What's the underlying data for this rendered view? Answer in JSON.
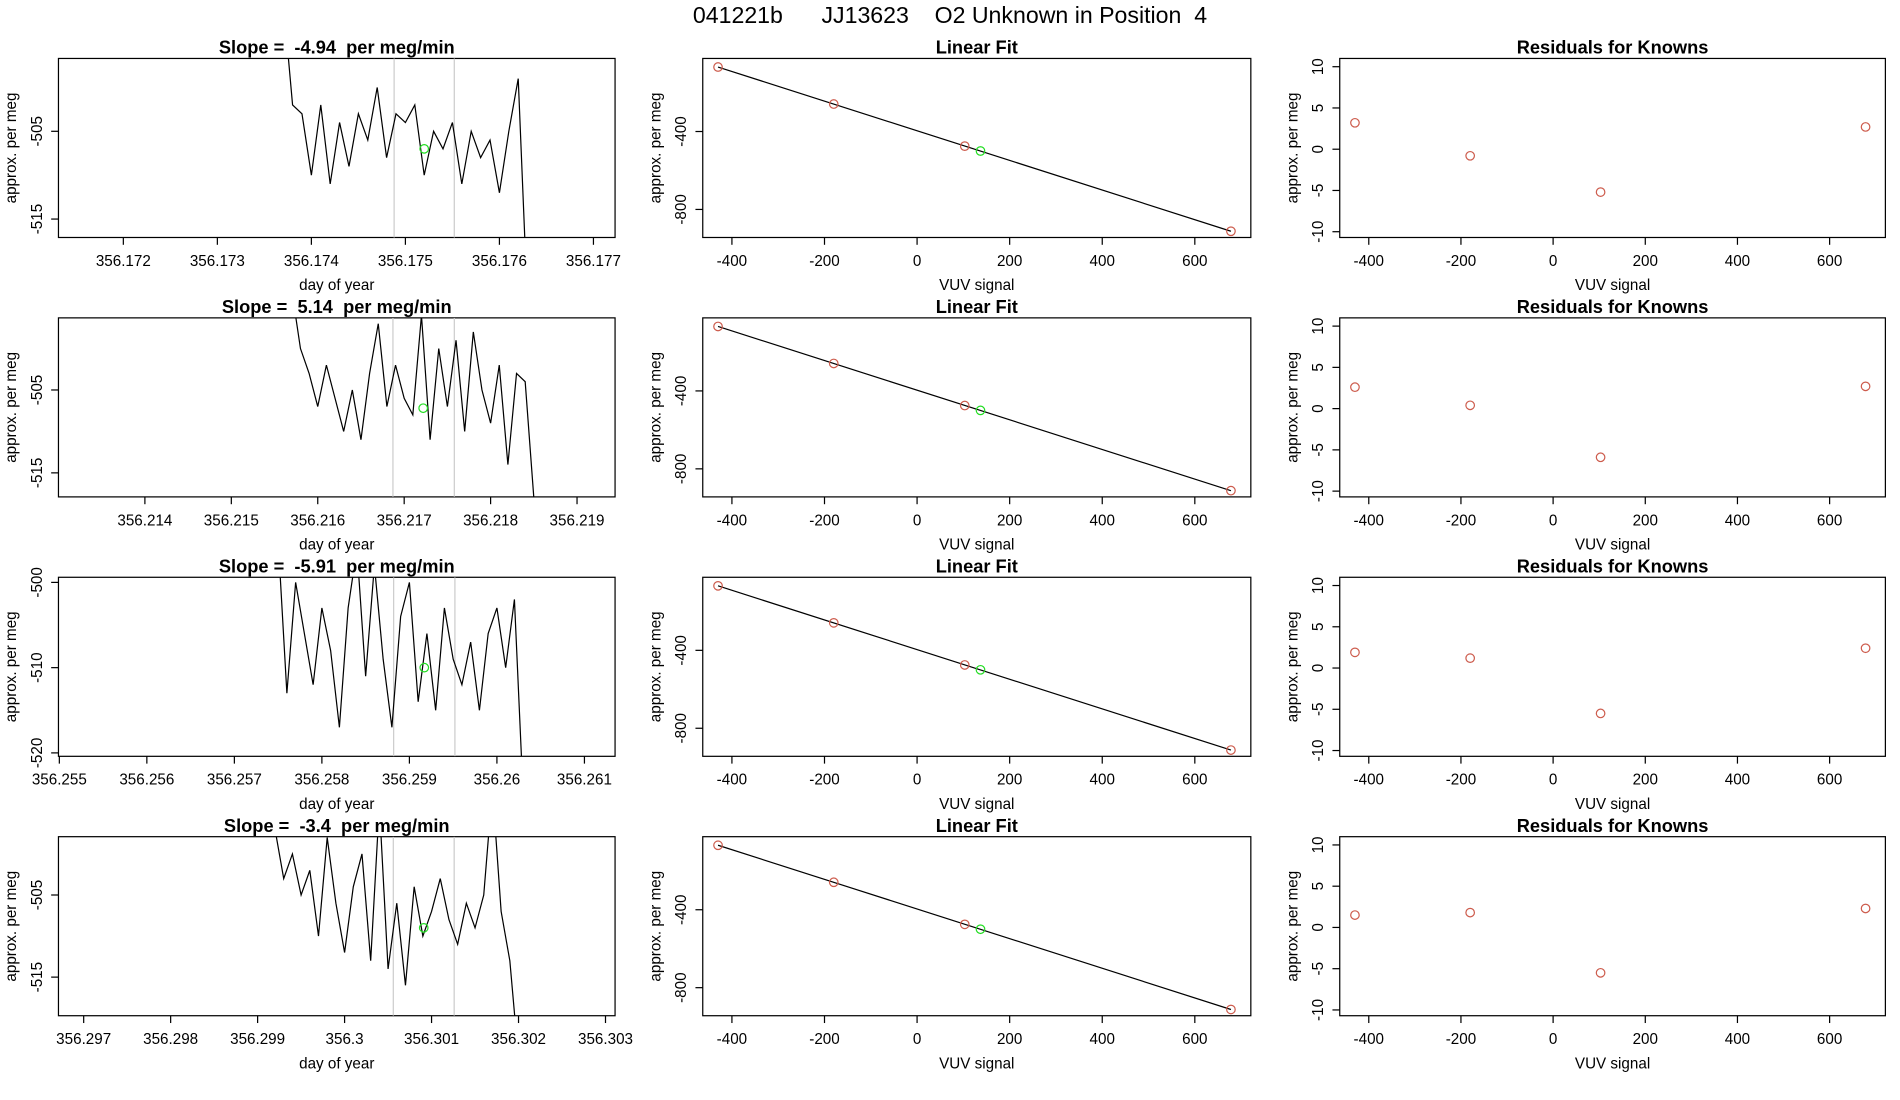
{
  "title": "041221b      JJ13623    O2 Unknown in Position  4",
  "chart_data": [
    {
      "type": "line",
      "title": "Slope =  -4.94  per meg/min",
      "xlabel": "day of year",
      "ylabel": "approx. per meg",
      "x": [
        356.1737,
        356.1738,
        356.1739,
        356.174,
        356.1741,
        356.1742,
        356.1743,
        356.1744,
        356.1745,
        356.1746,
        356.1747,
        356.1748,
        356.1749,
        356.175,
        356.1751,
        356.1752,
        356.1753,
        356.1754,
        356.1755,
        356.1756,
        356.1757,
        356.1758,
        356.1759,
        356.176,
        356.1761,
        356.1762,
        356.1763
      ],
      "values": [
        -490,
        -502,
        -503,
        -510,
        -502,
        -511,
        -504,
        -509,
        -503,
        -506,
        -500,
        -508,
        -503,
        -504,
        -502,
        -510,
        -505,
        -507,
        -504,
        -511,
        -505,
        -508,
        -506,
        -512,
        -505,
        -499,
        -525
      ],
      "color": "#000000",
      "xlim": [
        356.17131,
        356.17723
      ],
      "ylim": [
        -517.1,
        -496.7
      ],
      "xticks": [
        356.172,
        356.173,
        356.174,
        356.175,
        356.176,
        356.177
      ],
      "yticks": [
        -515,
        -505
      ],
      "vlines": [
        356.17488,
        356.17552
      ],
      "vline_color": "#cccccc",
      "highlight": {
        "x": 356.1752,
        "y": -507,
        "color": "#22dd22"
      }
    },
    {
      "type": "scatter",
      "title": "Linear Fit",
      "xlabel": "VUV signal",
      "ylabel": "approx. per meg",
      "x": [
        -430,
        -180,
        103,
        678
      ],
      "values": [
        -69,
        -259,
        -475,
        -912
      ],
      "color": "#cd5c4d",
      "fit_x": [
        -430,
        678
      ],
      "fit_y": [
        -69,
        -912
      ],
      "fit_color": "#000000",
      "highlight": {
        "x": 137,
        "y": -500,
        "color": "#22dd22"
      },
      "xlim": [
        -463,
        721
      ],
      "ylim": [
        -944,
        -25
      ],
      "xticks": [
        -400,
        -200,
        0,
        200,
        400,
        600
      ],
      "yticks": [
        -800,
        -400
      ]
    },
    {
      "type": "scatter",
      "title": "Residuals for Knowns",
      "xlabel": "VUV signal",
      "ylabel": "approx. per meg",
      "x": [
        -430,
        -180,
        103,
        678
      ],
      "values": [
        3.2,
        -0.8,
        -5.2,
        2.7
      ],
      "color": "#cd5c4d",
      "xlim": [
        -463,
        721
      ],
      "ylim": [
        -10.7,
        11
      ],
      "xticks": [
        -400,
        -200,
        0,
        200,
        400,
        600
      ],
      "yticks": [
        -10,
        -5,
        0,
        5,
        10
      ]
    },
    {
      "type": "line",
      "title": "Slope =  5.14  per meg/min",
      "xlabel": "day of year",
      "ylabel": "approx. per meg",
      "x": [
        356.2157,
        356.2158,
        356.2159,
        356.216,
        356.2161,
        356.2162,
        356.2163,
        356.2164,
        356.2165,
        356.2166,
        356.2167,
        356.2168,
        356.2169,
        356.217,
        356.2171,
        356.2172,
        356.2173,
        356.2174,
        356.2175,
        356.2176,
        356.2177,
        356.2178,
        356.2179,
        356.218,
        356.2181,
        356.2182,
        356.2183,
        356.2184,
        356.2185
      ],
      "values": [
        -493,
        -500,
        -503,
        -507,
        -502,
        -506,
        -510,
        -505,
        -511,
        -503,
        -497,
        -507,
        -502,
        -506,
        -508,
        -496,
        -511,
        -500,
        -507,
        -499,
        -510,
        -498,
        -505,
        -509,
        -502,
        -514,
        -503,
        -504,
        -518
      ],
      "color": "#000000",
      "xlim": [
        356.213,
        356.21944
      ],
      "ylim": [
        -517.9,
        -496.3
      ],
      "xticks": [
        356.214,
        356.215,
        356.216,
        356.217,
        356.218,
        356.219
      ],
      "yticks": [
        -515,
        -505
      ],
      "vlines": [
        356.21687,
        356.21758
      ],
      "vline_color": "#cccccc",
      "highlight": {
        "x": 356.21722,
        "y": -507.2,
        "color": "#22dd22"
      }
    },
    {
      "type": "scatter",
      "title": "Linear Fit",
      "xlabel": "VUV signal",
      "ylabel": "approx. per meg",
      "x": [
        -430,
        -180,
        103,
        678
      ],
      "values": [
        -69,
        -259,
        -475,
        -912
      ],
      "color": "#cd5c4d",
      "fit_x": [
        -430,
        678
      ],
      "fit_y": [
        -69,
        -912
      ],
      "fit_color": "#000000",
      "highlight": {
        "x": 137,
        "y": -500,
        "color": "#22dd22"
      },
      "xlim": [
        -463,
        721
      ],
      "ylim": [
        -944,
        -25
      ],
      "xticks": [
        -400,
        -200,
        0,
        200,
        400,
        600
      ],
      "yticks": [
        -800,
        -400
      ]
    },
    {
      "type": "scatter",
      "title": "Residuals for Knowns",
      "xlabel": "VUV signal",
      "ylabel": "approx. per meg",
      "x": [
        -430,
        -180,
        103,
        678
      ],
      "values": [
        2.6,
        0.4,
        -5.9,
        2.7
      ],
      "color": "#cd5c4d",
      "xlim": [
        -463,
        721
      ],
      "ylim": [
        -10.7,
        11
      ],
      "xticks": [
        -400,
        -200,
        0,
        200,
        400,
        600
      ],
      "yticks": [
        -10,
        -5,
        0,
        5,
        10
      ]
    },
    {
      "type": "line",
      "title": "Slope =  -5.91  per meg/min",
      "xlabel": "day of year",
      "ylabel": "approx. per meg",
      "x": [
        356.2575,
        356.2576,
        356.2577,
        356.2578,
        356.2579,
        356.258,
        356.2581,
        356.2582,
        356.2583,
        356.2584,
        356.2585,
        356.2586,
        356.2587,
        356.2588,
        356.2589,
        356.259,
        356.2591,
        356.2592,
        356.2593,
        356.2594,
        356.2595,
        356.2596,
        356.2597,
        356.2598,
        356.2599,
        356.26,
        356.2601,
        356.2602,
        356.2603
      ],
      "values": [
        -495,
        -513,
        -500,
        -506,
        -512,
        -503,
        -508,
        -517,
        -503,
        -496,
        -511,
        -498,
        -509,
        -517,
        -504,
        -500,
        -514,
        -506,
        -515,
        -503,
        -509,
        -512,
        -507,
        -515,
        -506,
        -503,
        -510,
        -502,
        -525
      ],
      "color": "#000000",
      "xlim": [
        356.25499,
        356.26135
      ],
      "ylim": [
        -520.4,
        -499.4
      ],
      "xticks": [
        356.255,
        356.256,
        356.257,
        356.258,
        356.259,
        356.26,
        356.261
      ],
      "yticks": [
        -520,
        -510,
        -500
      ],
      "vlines": [
        356.25882,
        356.25952
      ],
      "vline_color": "#cccccc",
      "highlight": {
        "x": 356.25917,
        "y": -510,
        "color": "#22dd22"
      }
    },
    {
      "type": "scatter",
      "title": "Linear Fit",
      "xlabel": "VUV signal",
      "ylabel": "approx. per meg",
      "x": [
        -430,
        -180,
        103,
        678
      ],
      "values": [
        -69,
        -259,
        -475,
        -912
      ],
      "color": "#cd5c4d",
      "fit_x": [
        -430,
        678
      ],
      "fit_y": [
        -69,
        -912
      ],
      "fit_color": "#000000",
      "highlight": {
        "x": 137,
        "y": -500,
        "color": "#22dd22"
      },
      "xlim": [
        -463,
        721
      ],
      "ylim": [
        -944,
        -25
      ],
      "xticks": [
        -400,
        -200,
        0,
        200,
        400,
        600
      ],
      "yticks": [
        -800,
        -400
      ]
    },
    {
      "type": "scatter",
      "title": "Residuals for Knowns",
      "xlabel": "VUV signal",
      "ylabel": "approx. per meg",
      "x": [
        -430,
        -180,
        103,
        678
      ],
      "values": [
        1.9,
        1.2,
        -5.5,
        2.4
      ],
      "color": "#cd5c4d",
      "xlim": [
        -463,
        721
      ],
      "ylim": [
        -10.7,
        11
      ],
      "xticks": [
        -400,
        -200,
        0,
        200,
        400,
        600
      ],
      "yticks": [
        -10,
        -5,
        0,
        5,
        10
      ]
    },
    {
      "type": "line",
      "title": "Slope =  -3.4  per meg/min",
      "xlabel": "day of year",
      "ylabel": "approx. per meg",
      "x": [
        356.2992,
        356.2993,
        356.2994,
        356.2995,
        356.2996,
        356.2997,
        356.2998,
        356.2999,
        356.3,
        356.3001,
        356.3002,
        356.3003,
        356.3004,
        356.3005,
        356.3006,
        356.3007,
        356.3008,
        356.3009,
        356.301,
        356.3011,
        356.3012,
        356.3013,
        356.3014,
        356.3015,
        356.3016,
        356.3017,
        356.3018,
        356.3019,
        356.302
      ],
      "values": [
        -497,
        -503,
        -500,
        -505,
        -502,
        -510,
        -498,
        -506,
        -512,
        -504,
        -500,
        -513,
        -494,
        -514,
        -506,
        -516,
        -504,
        -510,
        -507,
        -503,
        -508,
        -511,
        -506,
        -509,
        -505,
        -492,
        -507,
        -513,
        -525
      ],
      "color": "#000000",
      "xlim": [
        356.29671,
        356.30311
      ],
      "ylim": [
        -519.7,
        -497.9
      ],
      "xticks": [
        356.297,
        356.298,
        356.299,
        356.3,
        356.301,
        356.302,
        356.303
      ],
      "yticks": [
        -515,
        -505
      ],
      "vlines": [
        356.30056,
        356.30126
      ],
      "vline_color": "#cccccc",
      "highlight": {
        "x": 356.30091,
        "y": -509,
        "color": "#22dd22"
      }
    },
    {
      "type": "scatter",
      "title": "Linear Fit",
      "xlabel": "VUV signal",
      "ylabel": "approx. per meg",
      "x": [
        -430,
        -180,
        103,
        678
      ],
      "values": [
        -69,
        -259,
        -475,
        -912
      ],
      "color": "#cd5c4d",
      "fit_x": [
        -430,
        678
      ],
      "fit_y": [
        -69,
        -912
      ],
      "fit_color": "#000000",
      "highlight": {
        "x": 137,
        "y": -500,
        "color": "#22dd22"
      },
      "xlim": [
        -463,
        721
      ],
      "ylim": [
        -944,
        -25
      ],
      "xticks": [
        -400,
        -200,
        0,
        200,
        400,
        600
      ],
      "yticks": [
        -800,
        -400
      ]
    },
    {
      "type": "scatter",
      "title": "Residuals for Knowns",
      "xlabel": "VUV signal",
      "ylabel": "approx. per meg",
      "x": [
        -430,
        -180,
        103,
        678
      ],
      "values": [
        1.5,
        1.8,
        -5.5,
        2.3
      ],
      "color": "#cd5c4d",
      "xlim": [
        -463,
        721
      ],
      "ylim": [
        -10.7,
        11
      ],
      "xticks": [
        -400,
        -200,
        0,
        200,
        400,
        600
      ],
      "yticks": [
        -10,
        -5,
        0,
        5,
        10
      ]
    }
  ]
}
